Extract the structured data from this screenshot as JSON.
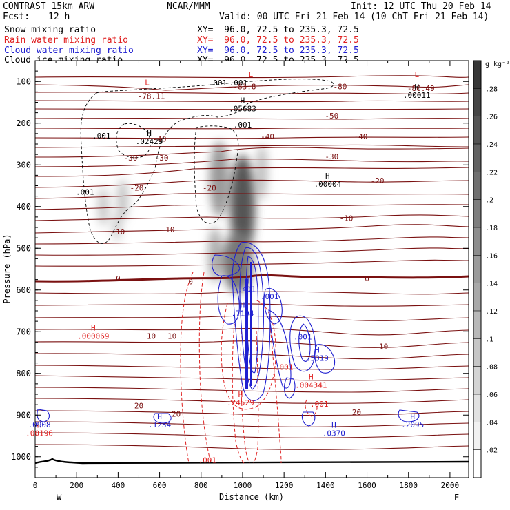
{
  "header": {
    "model": "CONTRAST 15km ARW",
    "center": "NCAR/MMM",
    "init": "Init: 12 UTC Thu 20 Feb 14",
    "fcst_label": "Fcst:",
    "fcst_value": "12 h",
    "valid": "Valid: 00 UTC Fri 21 Feb 14 (10 ChT Fri 21 Feb 14)"
  },
  "fields": [
    {
      "name": "Snow mixing ratio",
      "color": "#000000",
      "xy": ""
    },
    {
      "name": "Rain water mixing ratio",
      "color": "#e02020",
      "xy": "XY=  96.0, 72.5 to 235.3, 72.5"
    },
    {
      "name": "Cloud water mixing ratio",
      "color": "#2020d0",
      "xy": "XY=  96.0, 72.5 to 235.3, 72.5"
    },
    {
      "name": "Cloud ice mixing ratio",
      "color": "#000000",
      "xy": "XY=  96.0, 72.5 to 235.3, 72.5"
    }
  ],
  "snow_xy": "XY=  96.0, 72.5 to 235.3, 72.5",
  "chart_data": {
    "type": "heatmap",
    "xlabel": "Distance (km)",
    "ylabel": "Pressure (hPa)",
    "xlim": [
      0,
      2090
    ],
    "ylim": [
      1050,
      50
    ],
    "xticks": [
      0,
      100,
      200,
      300,
      400,
      500,
      600,
      700,
      800,
      900,
      1000,
      1100,
      1200,
      1300,
      1400,
      1500,
      1600,
      1700,
      1800,
      1900,
      2000
    ],
    "yticks": [
      100,
      200,
      300,
      400,
      500,
      600,
      700,
      800,
      900,
      1000
    ],
    "ytick_labels": [
      "100",
      "200",
      "300",
      "400",
      "500",
      "600",
      "700",
      "800",
      "900",
      "1000"
    ],
    "xtick_labels": [
      "0",
      "200",
      "400",
      "600",
      "800",
      "1000",
      "1200",
      "1400",
      "1600",
      "1800",
      "2000"
    ],
    "west_label": "W",
    "east_label": "E",
    "colorbar": {
      "unit": "g kg⁻¹",
      "levels": [
        0.02,
        0.04,
        0.06,
        0.08,
        0.1,
        0.12,
        0.14,
        0.16,
        0.18,
        0.2,
        0.22,
        0.24,
        0.26,
        0.28
      ],
      "labels": [
        ".02",
        ".04",
        ".06",
        ".08",
        ".1",
        ".12",
        ".14",
        ".16",
        ".18",
        ".2",
        ".22",
        ".24",
        ".26",
        ".28"
      ]
    },
    "temperature_contours": [
      {
        "label": "-80",
        "x": 1470,
        "p": 112
      },
      {
        "label": "-78.11",
        "x": 560,
        "p": 135,
        "note": "L"
      },
      {
        "label": "-83.8",
        "x": 1010,
        "p": 112
      },
      {
        "label": "-80.49",
        "x": 1860,
        "p": 116
      },
      {
        "label": "-50",
        "x": 1430,
        "p": 182
      },
      {
        "label": "-40",
        "x": 600,
        "p": 238
      },
      {
        "label": "-40",
        "x": 1120,
        "p": 232
      },
      {
        "label": "-40",
        "x": 1570,
        "p": 232
      },
      {
        "label": "-30",
        "x": 460,
        "p": 283
      },
      {
        "label": "-30",
        "x": 610,
        "p": 283
      },
      {
        "label": "-30",
        "x": 1430,
        "p": 280
      },
      {
        "label": "-20",
        "x": 490,
        "p": 355
      },
      {
        "label": "-20",
        "x": 840,
        "p": 355
      },
      {
        "label": "-20",
        "x": 1650,
        "p": 338
      },
      {
        "label": "-10",
        "x": 400,
        "p": 460
      },
      {
        "label": "-10",
        "x": 640,
        "p": 455
      },
      {
        "label": "-10",
        "x": 1500,
        "p": 428
      },
      {
        "label": "0",
        "x": 400,
        "p": 572
      },
      {
        "label": "0",
        "x": 750,
        "p": 580
      },
      {
        "label": "0",
        "x": 1600,
        "p": 572
      },
      {
        "label": "10",
        "x": 560,
        "p": 710
      },
      {
        "label": "10",
        "x": 660,
        "p": 710
      },
      {
        "label": "10",
        "x": 1680,
        "p": 735
      },
      {
        "label": "20",
        "x": 500,
        "p": 877
      },
      {
        "label": "20",
        "x": 680,
        "p": 897
      },
      {
        "label": "20",
        "x": 1550,
        "p": 893
      }
    ],
    "extrema": [
      {
        "label": "L",
        "value": "",
        "x": 540,
        "p": 122,
        "color": "#e02020"
      },
      {
        "label": "H",
        "value": ".05683",
        "x": 1000,
        "p": 165,
        "color": "#000000"
      },
      {
        "label": "L",
        "value": "",
        "x": 1040,
        "p": 103,
        "color": "#e02020"
      },
      {
        "label": "L",
        "value": "",
        "x": 1840,
        "p": 103,
        "color": "#e02020"
      },
      {
        "label": "H",
        "value": ".00011",
        "x": 1840,
        "p": 133,
        "color": "#000000"
      },
      {
        "label": "H",
        "value": ".02429",
        "x": 550,
        "p": 243,
        "color": "#000000"
      },
      {
        "label": "H",
        "value": ".00004",
        "x": 1410,
        "p": 346,
        "color": "#000000"
      },
      {
        "label": "H",
        "value": ".401",
        "x": 1020,
        "p": 598,
        "color": "#2020d0"
      },
      {
        "label": "H",
        "value": ".7194",
        "x": 1000,
        "p": 656,
        "color": "#2020d0"
      },
      {
        "label": "H",
        "value": ".000069",
        "x": 280,
        "p": 710,
        "color": "#e02020"
      },
      {
        "label": "H",
        "value": ".5019",
        "x": 1360,
        "p": 763,
        "color": "#2020d0"
      },
      {
        "label": "H",
        "value": ".004341",
        "x": 1330,
        "p": 828,
        "color": "#e02020"
      },
      {
        "label": "H",
        "value": ".24529",
        "x": 990,
        "p": 870,
        "color": "#e02020"
      },
      {
        "label": "H",
        "value": ".1234",
        "x": 600,
        "p": 923,
        "color": "#2020d0"
      },
      {
        "label": "H",
        "value": ".0370",
        "x": 1440,
        "p": 943,
        "color": "#2020d0"
      },
      {
        "label": "H",
        "value": ".2095",
        "x": 1820,
        "p": 923,
        "color": "#2020d0"
      },
      {
        "label": "H",
        "value": ".00196",
        "x": 20,
        "p": 943,
        "color": "#e02020"
      },
      {
        "label": "",
        "value": ".0908",
        "x": 20,
        "p": 923,
        "color": "#2020d0"
      }
    ],
    "contour_labels": [
      {
        "text": ".001",
        "x": 880,
        "p": 103,
        "color": "#000000"
      },
      {
        "text": ".001",
        "x": 980,
        "p": 103,
        "color": "#000000"
      },
      {
        "text": ".001",
        "x": 320,
        "p": 230,
        "color": "#000000"
      },
      {
        "text": ".001",
        "x": 1000,
        "p": 204,
        "color": "#000000"
      },
      {
        "text": ".001",
        "x": 240,
        "p": 365,
        "color": "#000000"
      },
      {
        "text": ".001",
        "x": 1130,
        "p": 615,
        "color": "#2020d0"
      },
      {
        "text": ".001",
        "x": 1290,
        "p": 712,
        "color": "#2020d0"
      },
      {
        "text": ".001",
        "x": 1200,
        "p": 785,
        "color": "#e02020"
      },
      {
        "text": ".001",
        "x": 1370,
        "p": 873,
        "color": "#e02020"
      },
      {
        "text": ".001",
        "x": 830,
        "p": 1008,
        "color": "#e02020"
      }
    ]
  }
}
